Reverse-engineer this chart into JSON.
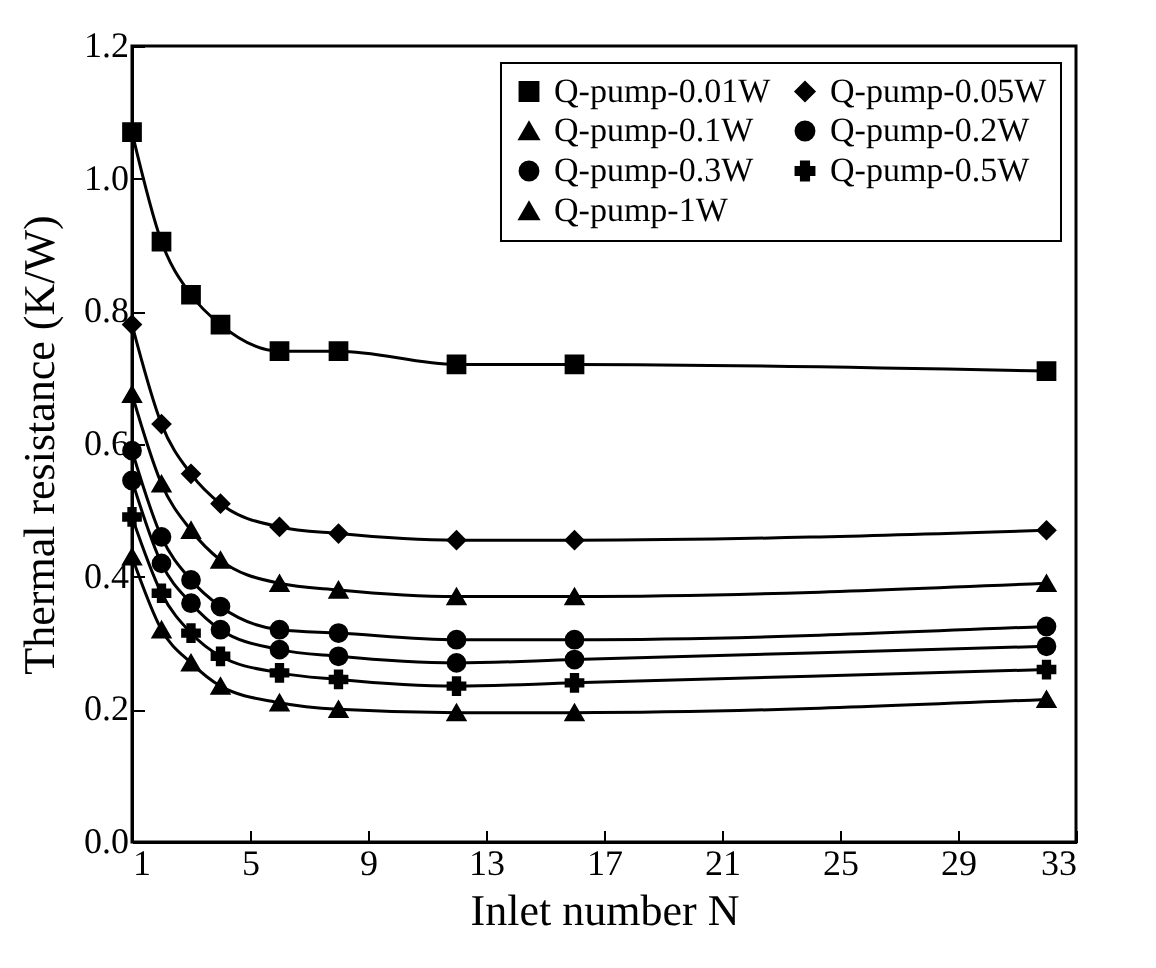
{
  "chart_data": {
    "type": "line",
    "xlabel": "Inlet number N",
    "ylabel": "Thermal resistance (K/W)",
    "x": [
      1,
      2,
      3,
      4,
      6,
      8,
      12,
      16,
      32
    ],
    "xlim": [
      1,
      33
    ],
    "xticks": [
      1,
      5,
      9,
      13,
      17,
      21,
      25,
      29,
      33
    ],
    "ylim": [
      0,
      1.2
    ],
    "yticks": [
      {
        "value": 0,
        "label": "0.0"
      },
      0.2,
      0.4,
      0.6,
      0.8,
      {
        "value": 1,
        "label": "1.0"
      },
      1.2
    ],
    "grid": false,
    "legend": "top right",
    "line_style": "solid",
    "series": [
      {
        "name": "Q-pump-0.01W",
        "color": "#000000",
        "marker": "square",
        "values": [
          1.07,
          0.905,
          0.825,
          0.78,
          0.74,
          0.74,
          0.72,
          0.72,
          0.71
        ]
      },
      {
        "name": "Q-pump-0.05W",
        "color": "#000000",
        "marker": "diamond",
        "values": [
          0.78,
          0.63,
          0.555,
          0.51,
          0.475,
          0.465,
          0.455,
          0.455,
          0.47
        ]
      },
      {
        "name": "Q-pump-0.1W",
        "color": "#000000",
        "marker": "triangle",
        "values": [
          0.675,
          0.54,
          0.47,
          0.425,
          0.39,
          0.38,
          0.37,
          0.37,
          0.39
        ]
      },
      {
        "name": "Q-pump-0.2W",
        "color": "#000000",
        "marker": "circle",
        "values": [
          0.59,
          0.46,
          0.395,
          0.355,
          0.32,
          0.315,
          0.305,
          0.305,
          0.325
        ]
      },
      {
        "name": "Q-pump-0.3W",
        "color": "#000000",
        "marker": "circle",
        "values": [
          0.545,
          0.42,
          0.36,
          0.32,
          0.29,
          0.28,
          0.27,
          0.275,
          0.295
        ]
      },
      {
        "name": "Q-pump-0.5W",
        "color": "#000000",
        "marker": "cross",
        "values": [
          0.49,
          0.375,
          0.315,
          0.28,
          0.255,
          0.245,
          0.235,
          0.24,
          0.26
        ]
      },
      {
        "name": "Q-pump-1W",
        "color": "#000000",
        "marker": "triangle",
        "values": [
          0.43,
          0.32,
          0.27,
          0.235,
          0.21,
          0.2,
          0.195,
          0.195,
          0.215
        ]
      }
    ]
  }
}
